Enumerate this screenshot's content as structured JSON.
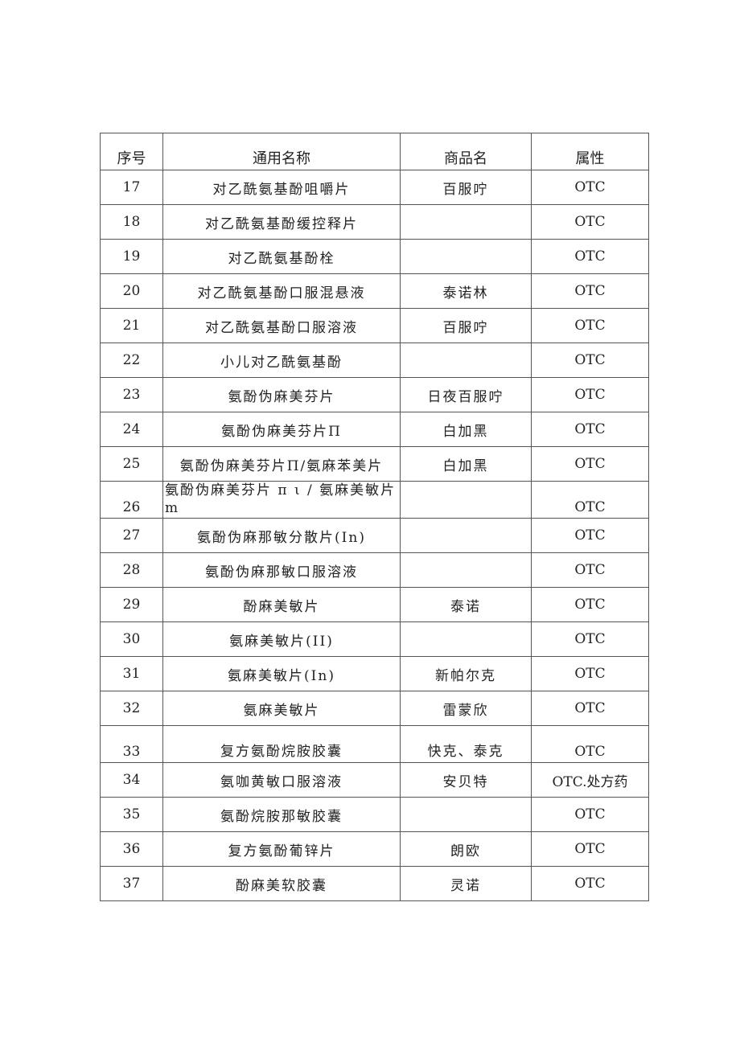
{
  "headers": [
    "序号",
    "通用名称",
    "商品名",
    "属性"
  ],
  "rows": [
    {
      "no": "17",
      "name": "对乙酰氨基酚咀嚼片",
      "brand": "百服咛",
      "attr": "OTC"
    },
    {
      "no": "18",
      "name": "对乙酰氨基酚缓控释片",
      "brand": "",
      "attr": "OTC"
    },
    {
      "no": "19",
      "name": "对乙酰氨基酚栓",
      "brand": "",
      "attr": "OTC"
    },
    {
      "no": "20",
      "name": "对乙酰氨基酚口服混悬液",
      "brand": "泰诺林",
      "attr": "OTC"
    },
    {
      "no": "21",
      "name": "对乙酰氨基酚口服溶液",
      "brand": "百服咛",
      "attr": "OTC"
    },
    {
      "no": "22",
      "name": "小儿对乙酰氨基酚",
      "brand": "",
      "attr": "OTC"
    },
    {
      "no": "23",
      "name": "氨酚伪麻美芬片",
      "brand": "日夜百服咛",
      "attr": "OTC"
    },
    {
      "no": "24",
      "name": "氨酚伪麻美芬片Π",
      "brand": "白加黑",
      "attr": "OTC"
    },
    {
      "no": "25",
      "name": "氨酚伪麻美芬片Π/氨麻苯美片",
      "brand": "白加黑",
      "attr": "OTC"
    },
    {
      "no": "26",
      "name": "氨酚伪麻美芬片 π ι / 氨麻美敏片 m",
      "brand": "",
      "attr": "OTC"
    },
    {
      "no": "27",
      "name": "氨酚伪麻那敏分散片(In)",
      "brand": "",
      "attr": "OTC"
    },
    {
      "no": "28",
      "name": "氨酚伪麻那敏口服溶液",
      "brand": "",
      "attr": "OTC"
    },
    {
      "no": "29",
      "name": "酚麻美敏片",
      "brand": "泰诺",
      "attr": "OTC"
    },
    {
      "no": "30",
      "name": "氨麻美敏片(II)",
      "brand": "",
      "attr": "OTC"
    },
    {
      "no": "31",
      "name": "氨麻美敏片(In)",
      "brand": "新帕尔克",
      "attr": "OTC"
    },
    {
      "no": "32",
      "name": "氨麻美敏片",
      "brand": "雷蒙欣",
      "attr": "OTC"
    },
    {
      "no": "33",
      "name": "复方氨酚烷胺胶囊",
      "brand": "快克、泰克",
      "attr": "OTC"
    },
    {
      "no": "34",
      "name": "氨咖黄敏口服溶液",
      "brand": "安贝特",
      "attr": "OTC.处方药"
    },
    {
      "no": "35",
      "name": "氨酚烷胺那敏胶囊",
      "brand": "",
      "attr": "OTC"
    },
    {
      "no": "36",
      "name": "复方氨酚葡锌片",
      "brand": "朗欧",
      "attr": "OTC"
    },
    {
      "no": "37",
      "name": "酚麻美软胶囊",
      "brand": "灵诺",
      "attr": "OTC"
    }
  ]
}
